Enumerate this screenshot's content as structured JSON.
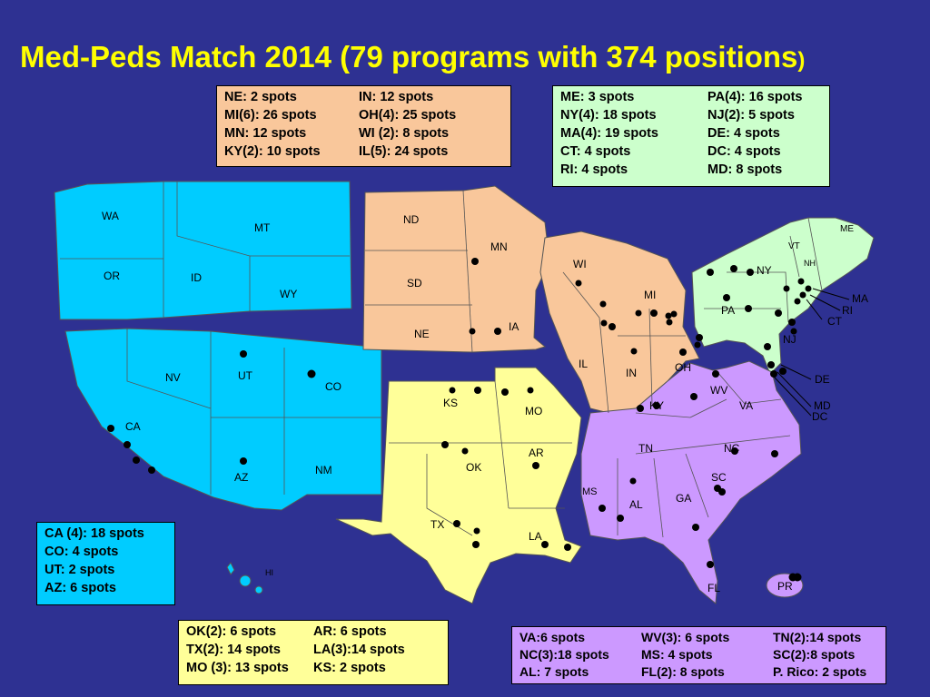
{
  "title": {
    "main": "Med-Peds Match 2014 (79 programs with 374 positions",
    "close": ")"
  },
  "colors": {
    "background": "#2e3192",
    "title": "#ffff00",
    "west": "#00ccff",
    "midwest": "#f9c79b",
    "northeast": "#ccffcc",
    "south_central": "#ffff99",
    "southeast": "#cc99ff"
  },
  "state_labels": {
    "WA": "WA",
    "OR": "OR",
    "ID": "ID",
    "MT": "MT",
    "WY": "WY",
    "NV": "NV",
    "UT": "UT",
    "CO": "CO",
    "CA": "CA",
    "AZ": "AZ",
    "NM": "NM",
    "HI": "HI",
    "ND": "ND",
    "SD": "SD",
    "NE": "NE",
    "MN": "MN",
    "IA": "IA",
    "WI": "WI",
    "IL": "IL",
    "MI": "MI",
    "IN": "IN",
    "OH": "OH",
    "KS": "KS",
    "MO": "MO",
    "OK": "OK",
    "AR": "AR",
    "TX": "TX",
    "LA": "LA",
    "KY": "KY",
    "WV": "WV",
    "VA": "VA",
    "TN": "TN",
    "NC": "NC",
    "SC": "SC",
    "MS": "MS",
    "AL": "AL",
    "GA": "GA",
    "FL": "FL",
    "PR": "PR",
    "ME": "ME",
    "VT": "VT",
    "NH": "NH",
    "NY": "NY",
    "MA": "MA",
    "RI": "RI",
    "CT": "CT",
    "PA": "PA",
    "NJ": "NJ",
    "DE": "DE",
    "MD": "MD",
    "DC": "DC"
  },
  "legend_midwest": [
    [
      "NE:      2 spots",
      "IN:      12 spots"
    ],
    [
      "MI(6):  26 spots",
      "OH(4): 25 spots"
    ],
    [
      "MN:     12 spots",
      "WI (2):  8 spots"
    ],
    [
      "KY(2): 10  spots",
      "IL(5):   24 spots"
    ]
  ],
  "legend_northeast": [
    [
      "ME:      3 spots",
      "PA(4): 16 spots"
    ],
    [
      "NY(4):  18 spots",
      "NJ(2):  5 spots"
    ],
    [
      "MA(4): 19 spots",
      "DE:      4 spots"
    ],
    [
      "CT:      4 spots",
      "DC:      4 spots"
    ],
    [
      "RI:      4 spots",
      "MD:      8 spots"
    ]
  ],
  "legend_west": [
    "CA (4): 18 spots",
    "CO:       4 spots",
    "UT:       2  spots",
    "AZ:       6  spots"
  ],
  "legend_south_central": [
    [
      "OK(2): 6  spots",
      "AR: 6 spots"
    ],
    [
      "TX(2): 14  spots",
      "LA(3):14 spots"
    ],
    [
      "MO (3): 13 spots",
      "KS: 2 spots"
    ]
  ],
  "legend_southeast": [
    [
      "VA:6 spots",
      "WV(3): 6 spots",
      "TN(2):14 spots"
    ],
    [
      "NC(3):18 spots",
      "MS: 4 spots",
      "SC(2):8 spots"
    ],
    [
      "AL: 7 spots",
      "FL(2): 8 spots",
      "P. Rico: 2 spots"
    ]
  ]
}
